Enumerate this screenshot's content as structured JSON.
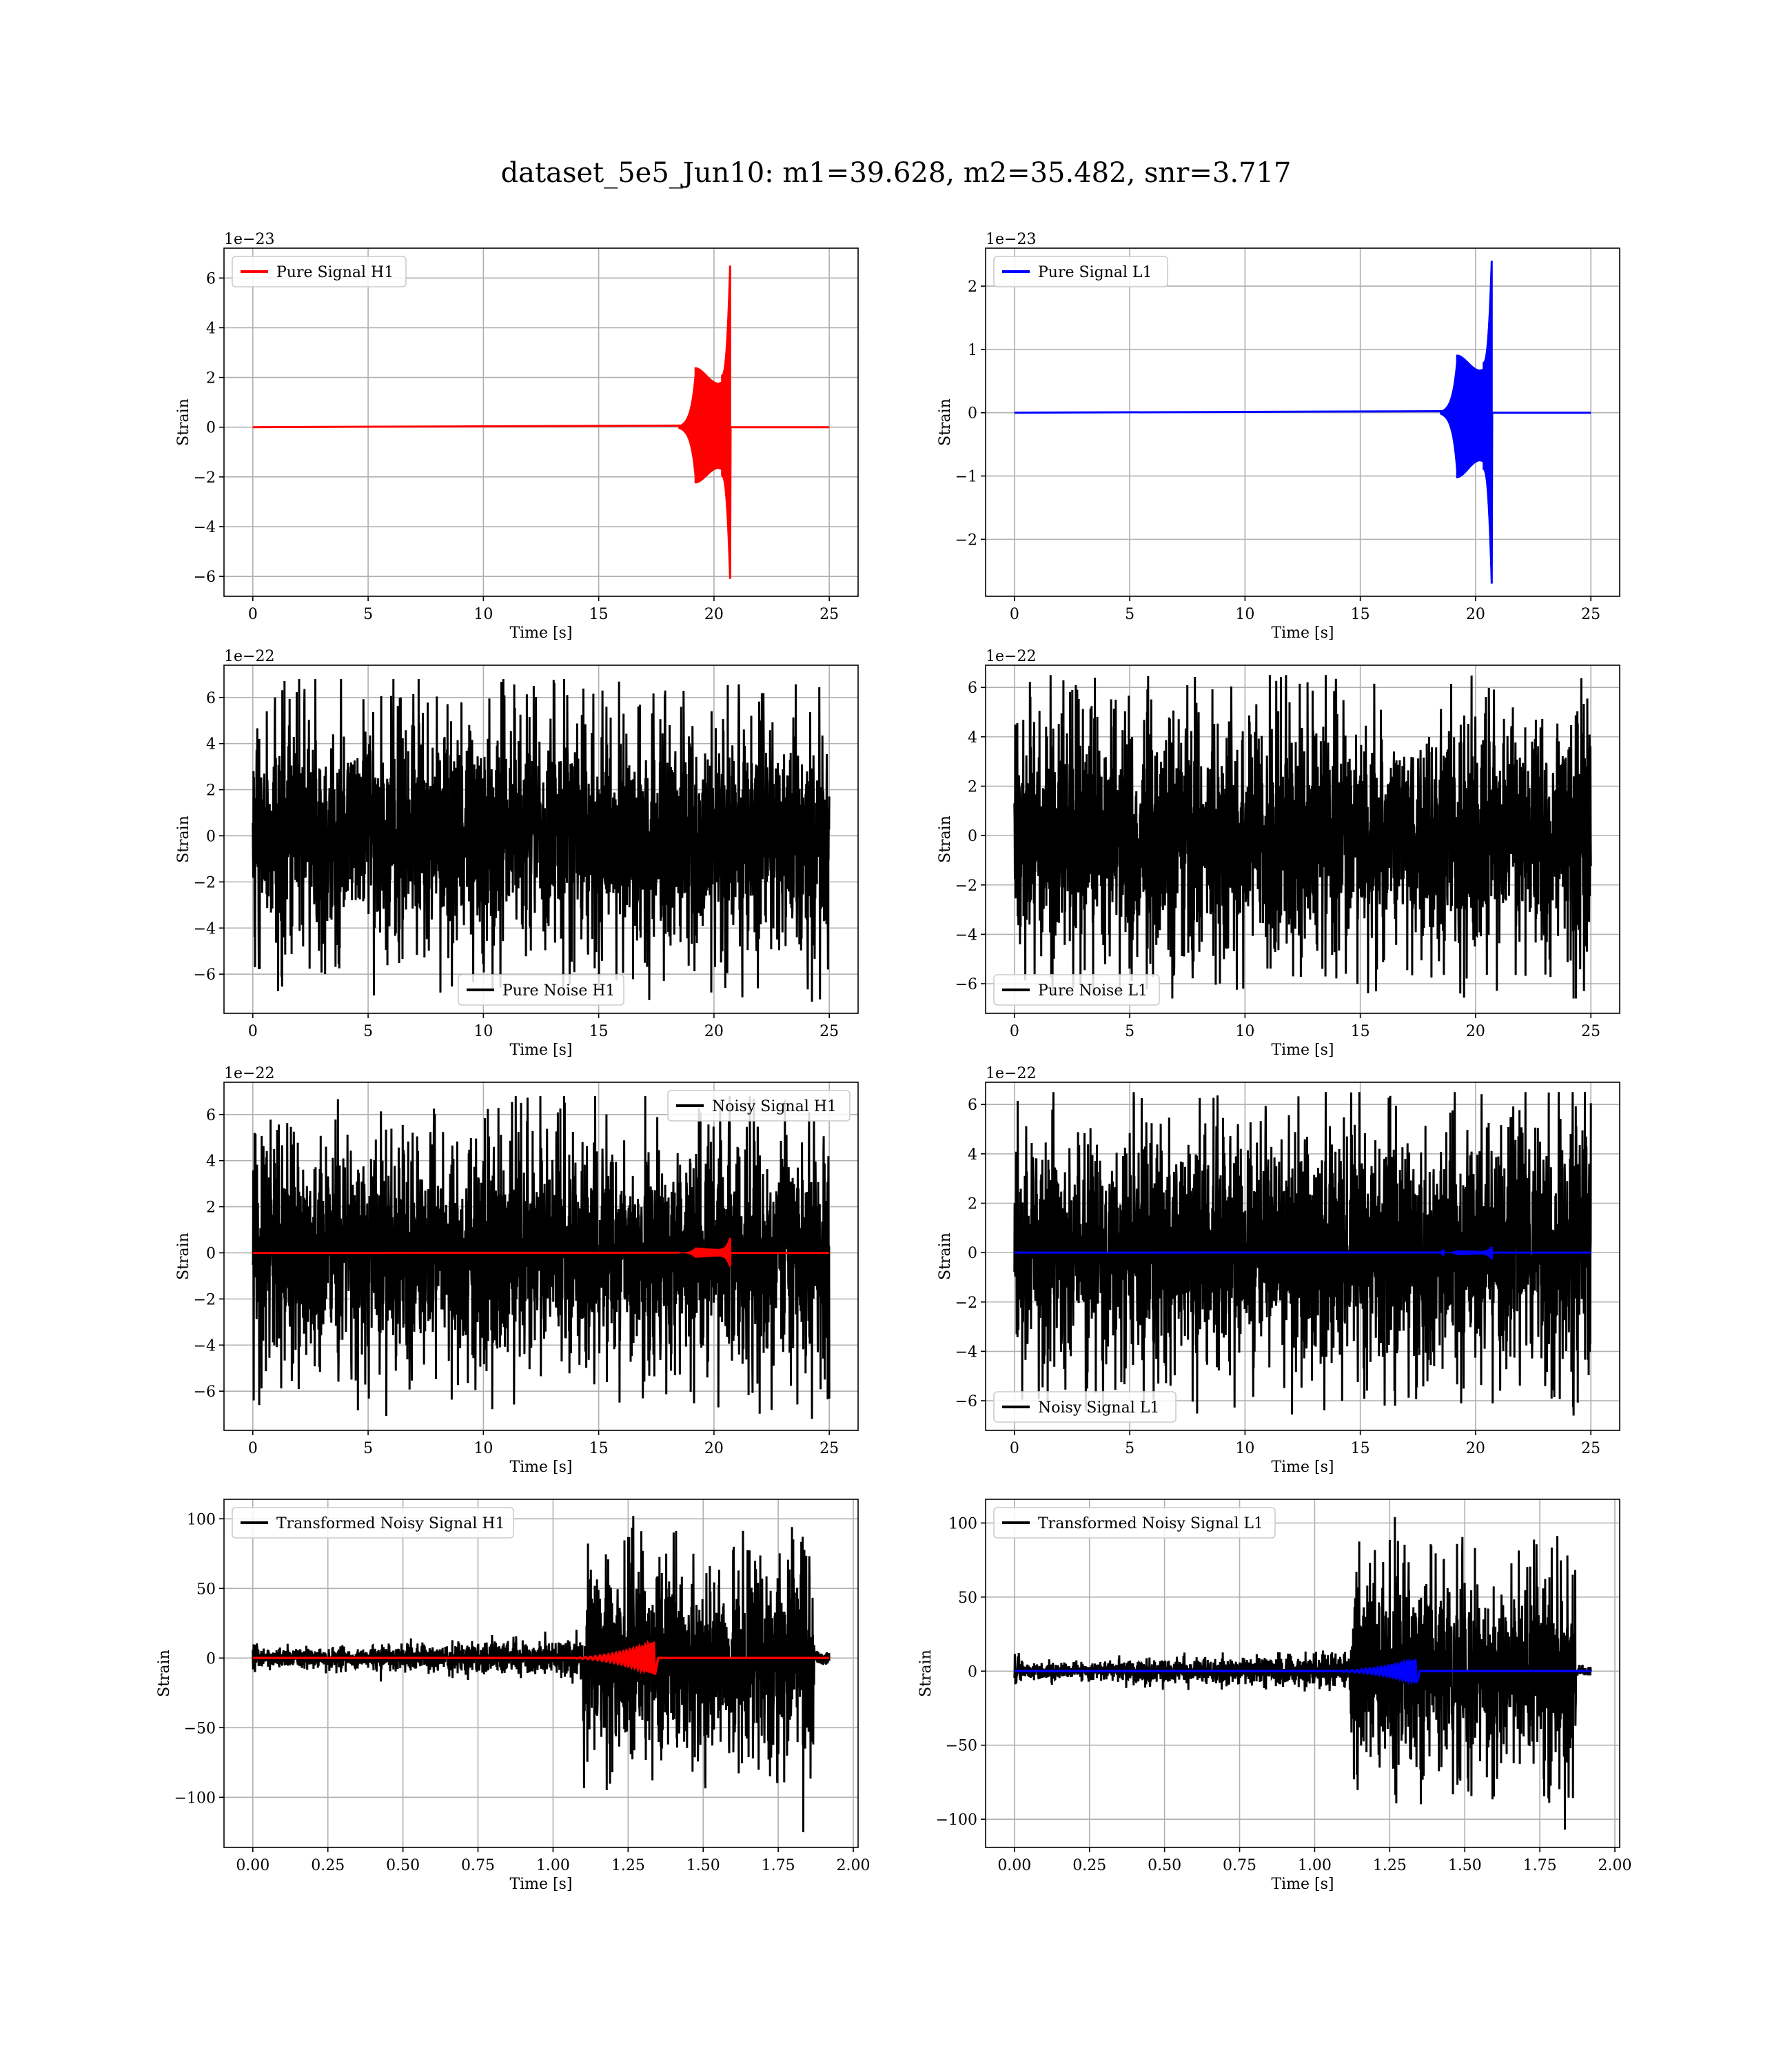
{
  "figure": {
    "suptitle": "dataset_5e5_Jun10: m1=39.628, m2=35.482, snr=3.717"
  },
  "colors": {
    "h1": "#ff0000",
    "l1": "#0000ff",
    "noise": "#000000",
    "grid": "#b0b0b0"
  },
  "chart_data": [
    {
      "id": "pure-signal-h1",
      "type": "line",
      "xlabel": "Time [s]",
      "ylabel": "Strain",
      "offset_text": "1e−23",
      "xlim": [
        -1.25,
        26.25
      ],
      "ylim": [
        -6.8,
        7.2
      ],
      "xticks": [
        0,
        5,
        10,
        15,
        20,
        25
      ],
      "xtick_labels": [
        "0",
        "5",
        "10",
        "15",
        "20",
        "25"
      ],
      "yticks": [
        -6,
        -4,
        -2,
        0,
        2,
        4,
        6
      ],
      "ytick_labels": [
        "−6",
        "−4",
        "−2",
        "0",
        "2",
        "4",
        "6"
      ],
      "legend_position": "upper-left",
      "grid": true,
      "series": [
        {
          "name": "Pure Signal H1",
          "color": "#ff0000",
          "kind": "chirp",
          "t_start": 0,
          "t_end": 25,
          "t_merge": 20.7,
          "peak_pos": 6.5,
          "peak_neg": -6.1,
          "plateau": 2.1
        }
      ]
    },
    {
      "id": "pure-signal-l1",
      "type": "line",
      "xlabel": "Time [s]",
      "ylabel": "Strain",
      "offset_text": "1e−23",
      "xlim": [
        -1.25,
        26.25
      ],
      "ylim": [
        -2.9,
        2.6
      ],
      "xticks": [
        0,
        5,
        10,
        15,
        20,
        25
      ],
      "xtick_labels": [
        "0",
        "5",
        "10",
        "15",
        "20",
        "25"
      ],
      "yticks": [
        -2,
        -1,
        0,
        1,
        2
      ],
      "ytick_labels": [
        "−2",
        "−1",
        "0",
        "1",
        "2"
      ],
      "legend_position": "upper-left",
      "grid": true,
      "series": [
        {
          "name": "Pure Signal L1",
          "color": "#0000ff",
          "kind": "chirp",
          "t_start": 0,
          "t_end": 25,
          "t_merge": 20.7,
          "peak_pos": 2.4,
          "peak_neg": -2.7,
          "plateau": 0.8
        }
      ]
    },
    {
      "id": "pure-noise-h1",
      "type": "line",
      "xlabel": "Time [s]",
      "ylabel": "Strain",
      "offset_text": "1e−22",
      "xlim": [
        -1.25,
        26.25
      ],
      "ylim": [
        -7.7,
        7.4
      ],
      "xticks": [
        0,
        5,
        10,
        15,
        20,
        25
      ],
      "xtick_labels": [
        "0",
        "5",
        "10",
        "15",
        "20",
        "25"
      ],
      "yticks": [
        -6,
        -4,
        -2,
        0,
        2,
        4,
        6
      ],
      "ytick_labels": [
        "−6",
        "−4",
        "−2",
        "0",
        "2",
        "4",
        "6"
      ],
      "legend_position": "lower-center",
      "grid": true,
      "series": [
        {
          "name": "Pure Noise H1",
          "color": "#000000",
          "kind": "noise",
          "t_start": 0,
          "t_end": 25,
          "band": 3.8,
          "max": 6.8,
          "min": -7.2
        }
      ]
    },
    {
      "id": "pure-noise-l1",
      "type": "line",
      "xlabel": "Time [s]",
      "ylabel": "Strain",
      "offset_text": "1e−22",
      "xlim": [
        -1.25,
        26.25
      ],
      "ylim": [
        -7.2,
        6.9
      ],
      "xticks": [
        0,
        5,
        10,
        15,
        20,
        25
      ],
      "xtick_labels": [
        "0",
        "5",
        "10",
        "15",
        "20",
        "25"
      ],
      "yticks": [
        -6,
        -4,
        -2,
        0,
        2,
        4,
        6
      ],
      "ytick_labels": [
        "−6",
        "−4",
        "−2",
        "0",
        "2",
        "4",
        "6"
      ],
      "legend_position": "lower-left",
      "grid": true,
      "series": [
        {
          "name": "Pure Noise L1",
          "color": "#000000",
          "kind": "noise",
          "t_start": 0,
          "t_end": 25,
          "band": 3.7,
          "max": 6.5,
          "min": -6.6
        }
      ]
    },
    {
      "id": "noisy-signal-h1",
      "type": "line",
      "xlabel": "Time [s]",
      "ylabel": "Strain",
      "offset_text": "1e−22",
      "xlim": [
        -1.25,
        26.25
      ],
      "ylim": [
        -7.7,
        7.4
      ],
      "xticks": [
        0,
        5,
        10,
        15,
        20,
        25
      ],
      "xtick_labels": [
        "0",
        "5",
        "10",
        "15",
        "20",
        "25"
      ],
      "yticks": [
        -6,
        -4,
        -2,
        0,
        2,
        4,
        6
      ],
      "ytick_labels": [
        "−6",
        "−4",
        "−2",
        "0",
        "2",
        "4",
        "6"
      ],
      "legend_position": "upper-right",
      "grid": true,
      "series": [
        {
          "name": "Noisy Signal H1",
          "color": "#000000",
          "kind": "noise",
          "t_start": 0,
          "t_end": 25,
          "band": 3.8,
          "max": 6.8,
          "min": -7.2
        },
        {
          "name": "",
          "color": "#ff0000",
          "kind": "chirp",
          "t_start": 0,
          "t_end": 25,
          "t_merge": 20.7,
          "peak_pos": 0.65,
          "peak_neg": -0.6,
          "plateau": 0.2
        }
      ]
    },
    {
      "id": "noisy-signal-l1",
      "type": "line",
      "xlabel": "Time [s]",
      "ylabel": "Strain",
      "offset_text": "1e−22",
      "xlim": [
        -1.25,
        26.25
      ],
      "ylim": [
        -7.2,
        6.9
      ],
      "xticks": [
        0,
        5,
        10,
        15,
        20,
        25
      ],
      "xtick_labels": [
        "0",
        "5",
        "10",
        "15",
        "20",
        "25"
      ],
      "yticks": [
        -6,
        -4,
        -2,
        0,
        2,
        4,
        6
      ],
      "ytick_labels": [
        "−6",
        "−4",
        "−2",
        "0",
        "2",
        "4",
        "6"
      ],
      "legend_position": "lower-left",
      "grid": true,
      "series": [
        {
          "name": "Noisy Signal L1",
          "color": "#000000",
          "kind": "noise",
          "t_start": 0,
          "t_end": 25,
          "band": 3.7,
          "max": 6.5,
          "min": -6.6
        },
        {
          "name": "",
          "color": "#0000ff",
          "kind": "chirp",
          "t_start": 0,
          "t_end": 25,
          "t_merge": 20.7,
          "peak_pos": 0.24,
          "peak_neg": -0.27,
          "plateau": 0.08
        }
      ]
    },
    {
      "id": "transformed-h1",
      "type": "line",
      "xlabel": "Time [s]",
      "ylabel": "Strain",
      "offset_text": "",
      "xlim": [
        -0.096,
        2.016
      ],
      "ylim": [
        -136,
        114
      ],
      "xticks": [
        0,
        0.25,
        0.5,
        0.75,
        1.0,
        1.25,
        1.5,
        1.75,
        2.0
      ],
      "xtick_labels": [
        "0.00",
        "0.25",
        "0.50",
        "0.75",
        "1.00",
        "1.25",
        "1.50",
        "1.75",
        "2.00"
      ],
      "yticks": [
        -100,
        -50,
        0,
        50,
        100
      ],
      "ytick_labels": [
        "−100",
        "−50",
        "0",
        "50",
        "100"
      ],
      "legend_position": "upper-left",
      "grid": true,
      "series": [
        {
          "name": "Transformed Noisy Signal H1",
          "color": "#000000",
          "kind": "transformed",
          "t_start": 0,
          "t_end": 1.92,
          "t_jump": 1.1,
          "t_cut": 1.87,
          "low": 8,
          "high": 55,
          "max": 102,
          "min": -125
        },
        {
          "name": "",
          "color": "#ff0000",
          "kind": "small-chirp",
          "t_start": 0,
          "t_end": 1.92,
          "t_merge": 1.34,
          "peak": 12
        }
      ]
    },
    {
      "id": "transformed-l1",
      "type": "line",
      "xlabel": "Time [s]",
      "ylabel": "Strain",
      "offset_text": "",
      "xlim": [
        -0.096,
        2.016
      ],
      "ylim": [
        -119,
        116
      ],
      "xticks": [
        0,
        0.25,
        0.5,
        0.75,
        1.0,
        1.25,
        1.5,
        1.75,
        2.0
      ],
      "xtick_labels": [
        "0.00",
        "0.25",
        "0.50",
        "0.75",
        "1.00",
        "1.25",
        "1.50",
        "1.75",
        "2.00"
      ],
      "yticks": [
        -100,
        -50,
        0,
        50,
        100
      ],
      "ytick_labels": [
        "−100",
        "−50",
        "0",
        "50",
        "100"
      ],
      "legend_position": "upper-left",
      "grid": true,
      "series": [
        {
          "name": "Transformed Noisy Signal L1",
          "color": "#000000",
          "kind": "transformed",
          "t_start": 0,
          "t_end": 1.92,
          "t_jump": 1.12,
          "t_cut": 1.87,
          "low": 7,
          "high": 52,
          "max": 104,
          "min": -107
        },
        {
          "name": "",
          "color": "#0000ff",
          "kind": "small-chirp",
          "t_start": 0,
          "t_end": 1.92,
          "t_merge": 1.34,
          "peak": 8
        }
      ]
    }
  ]
}
